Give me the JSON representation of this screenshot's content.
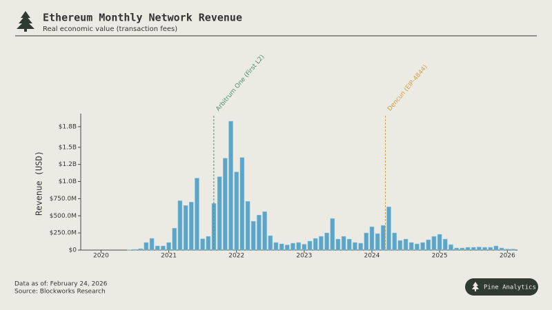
{
  "chart_data": {
    "type": "bar",
    "title": "Ethereum Monthly Network Revenue",
    "subtitle": "Real economic value (transaction fees)",
    "y_label": "Revenue (USD)",
    "x": [
      "2020-06",
      "2020-07",
      "2020-08",
      "2020-09",
      "2020-10",
      "2020-11",
      "2020-12",
      "2021-01",
      "2021-02",
      "2021-03",
      "2021-04",
      "2021-05",
      "2021-06",
      "2021-07",
      "2021-08",
      "2021-09",
      "2021-10",
      "2021-11",
      "2021-12",
      "2022-01",
      "2022-02",
      "2022-03",
      "2022-04",
      "2022-05",
      "2022-06",
      "2022-07",
      "2022-08",
      "2022-09",
      "2022-10",
      "2022-11",
      "2022-12",
      "2023-01",
      "2023-02",
      "2023-03",
      "2023-04",
      "2023-05",
      "2023-06",
      "2023-07",
      "2023-08",
      "2023-09",
      "2023-10",
      "2023-11",
      "2023-12",
      "2024-01",
      "2024-02",
      "2024-03",
      "2024-04",
      "2024-05",
      "2024-06",
      "2024-07",
      "2024-08",
      "2024-09",
      "2024-10",
      "2024-11",
      "2024-12",
      "2025-01",
      "2025-02",
      "2025-03",
      "2025-04",
      "2025-05",
      "2025-06",
      "2025-07",
      "2025-08",
      "2025-09",
      "2025-10",
      "2025-11",
      "2025-12",
      "2026-01",
      "2026-02"
    ],
    "values": [
      5,
      10,
      20,
      110,
      170,
      60,
      60,
      110,
      320,
      720,
      650,
      700,
      1050,
      165,
      200,
      680,
      1070,
      1340,
      1880,
      1140,
      1350,
      710,
      420,
      510,
      560,
      210,
      110,
      90,
      75,
      100,
      110,
      85,
      130,
      170,
      200,
      250,
      460,
      160,
      200,
      160,
      110,
      100,
      250,
      340,
      240,
      360,
      630,
      250,
      140,
      160,
      110,
      90,
      110,
      150,
      200,
      230,
      160,
      80,
      30,
      30,
      40,
      40,
      45,
      40,
      40,
      60,
      30,
      15,
      15
    ],
    "color": "#5aa5c8",
    "ylim": [
      0,
      1990
    ],
    "yticks": [
      {
        "value": 0,
        "label": "$0"
      },
      {
        "value": 250,
        "label": "$250.0M"
      },
      {
        "value": 500,
        "label": "$500.0M"
      },
      {
        "value": 750,
        "label": "$750.0M"
      },
      {
        "value": 1000,
        "label": "$1.0B"
      },
      {
        "value": 1250,
        "label": "$1.2B"
      },
      {
        "value": 1500,
        "label": "$1.5B"
      },
      {
        "value": 1800,
        "label": "$1.8B"
      }
    ],
    "xlim": [
      2019.7,
      2026.15
    ],
    "xticks": [
      2020,
      2021,
      2022,
      2023,
      2024,
      2025,
      2026
    ],
    "annotations": [
      {
        "x": "2021-08-31",
        "text": "Arbitrum One (First L2)",
        "color": "#4f8f72"
      },
      {
        "x": "2024-03-13",
        "text": "Dencun (EIP-4844)",
        "color": "#d0a048"
      }
    ],
    "footer": [
      "Data as of: February 24, 2026",
      "Source: Blockworks Research"
    ],
    "badge": "Pine Analytics"
  }
}
